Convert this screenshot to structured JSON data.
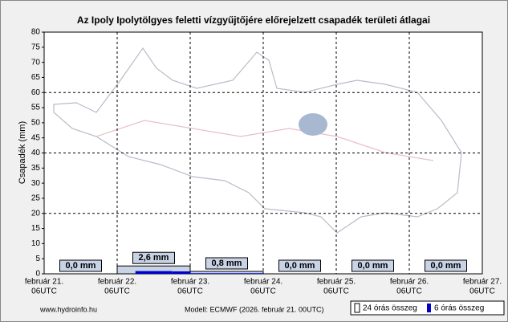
{
  "chart_data": {
    "type": "bar",
    "title": "Az Ipoly Ipolytölgyes feletti vízgyűjtőjére előrejelzett csapadék területi átlagai",
    "ylabel": "Csapadék (mm)",
    "ylim": [
      0,
      80
    ],
    "yticks": [
      0,
      5,
      10,
      15,
      20,
      25,
      30,
      35,
      40,
      45,
      50,
      55,
      60,
      65,
      70,
      75,
      80
    ],
    "x_labels": [
      [
        "február 21.",
        "06UTC"
      ],
      [
        "február 22.",
        "06UTC"
      ],
      [
        "február 23.",
        "06UTC"
      ],
      [
        "február 24.",
        "06UTC"
      ],
      [
        "február 25.",
        "06UTC"
      ],
      [
        "február 26.",
        "06UTC"
      ],
      [
        "február 27.",
        "06UTC"
      ]
    ],
    "series": [
      {
        "name": "24 órás összeg",
        "color": "#c8d3e6",
        "values": [
          0,
          2.6,
          0.8,
          0,
          0,
          0
        ],
        "value_labels": [
          "0,0 mm",
          "2,6 mm",
          "0,8 mm",
          "0,0 mm",
          "0,0 mm",
          "0,0 mm"
        ]
      },
      {
        "name": "6 órás összeg",
        "color": "#0000cc",
        "values": [
          0,
          0,
          0,
          0,
          0,
          0.9,
          0.9,
          0.8,
          0.2,
          0.2,
          0.2,
          0.2,
          0,
          0,
          0,
          0,
          0,
          0,
          0,
          0,
          0,
          0,
          0,
          0
        ]
      }
    ],
    "source": "www.hydroinfo.hu",
    "model": "Modell: ECMWF (2026. február 21. 00UTC)",
    "grid": true
  }
}
